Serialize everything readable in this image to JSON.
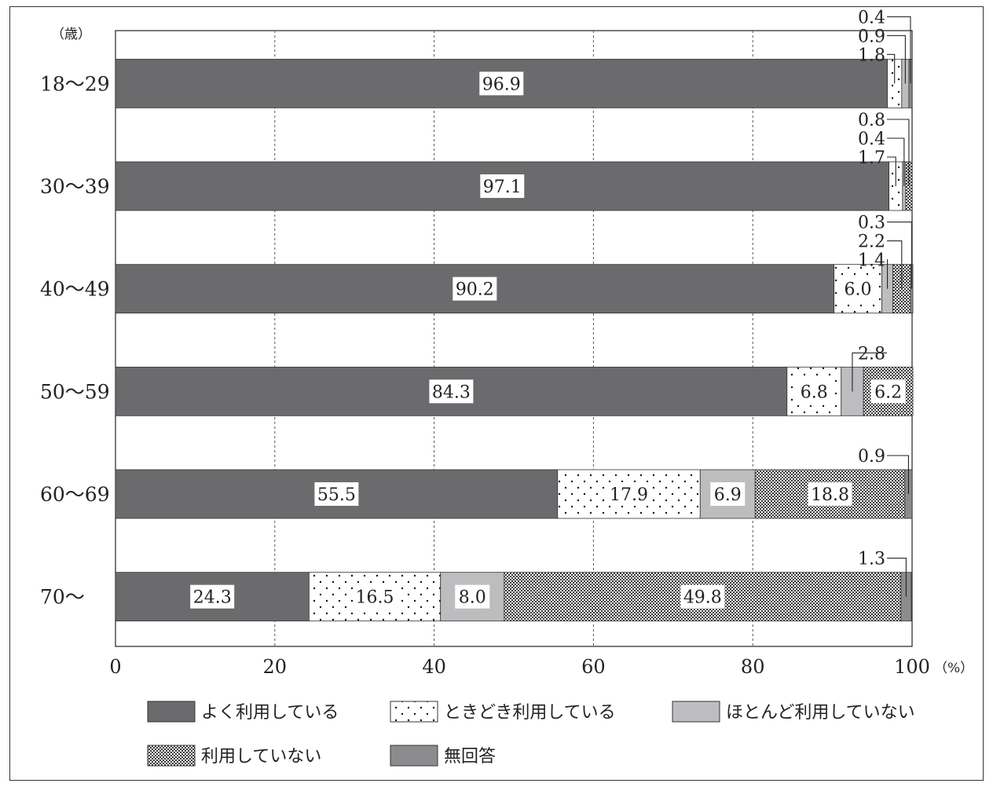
{
  "chart_data": {
    "type": "bar",
    "orientation": "horizontal",
    "stacked": true,
    "y_unit": "（歳）",
    "x_unit": "（%）",
    "xlim": [
      0,
      100
    ],
    "x_ticks": [
      0,
      20,
      40,
      60,
      80,
      100
    ],
    "grid": "vertical-dashed",
    "legend_position": "bottom",
    "categories": [
      "18～29",
      "30～39",
      "40～49",
      "50～59",
      "60～69",
      "70～"
    ],
    "series": [
      {
        "name": "よく利用している",
        "color": "#6b6b6e",
        "pattern": "solid-dark",
        "values": [
          96.9,
          97.1,
          90.2,
          84.3,
          55.5,
          24.3
        ],
        "labels": [
          "96.9",
          "97.1",
          "90.2",
          "84.3",
          "55.5",
          "24.3"
        ]
      },
      {
        "name": "ときどき利用している",
        "color": "#ffffff",
        "pattern": "dots",
        "values": [
          1.8,
          1.7,
          6.0,
          6.8,
          17.9,
          16.5
        ],
        "labels": [
          "1.8",
          "1.7",
          "6.0",
          "6.8",
          "17.9",
          "16.5"
        ]
      },
      {
        "name": "ほとんど利用していない",
        "color": "#bdbdc0",
        "pattern": "solid-light",
        "values": [
          0.9,
          0.4,
          1.4,
          2.8,
          6.9,
          8.0
        ],
        "labels": [
          "0.9",
          "0.4",
          "1.4",
          "2.8",
          "6.9",
          "8.0"
        ]
      },
      {
        "name": "利用していない",
        "color": "#9a9a9a",
        "pattern": "crosshatch",
        "values": [
          0.0,
          0.8,
          2.2,
          6.2,
          18.8,
          49.8
        ],
        "labels": [
          "",
          "0.8",
          "2.2",
          "6.2",
          "18.8",
          "49.8"
        ]
      },
      {
        "name": "無回答",
        "color": "#8c8c8e",
        "pattern": "solid-mid",
        "values": [
          0.4,
          0.0,
          0.3,
          0.0,
          0.9,
          1.3
        ],
        "labels": [
          "0.4",
          "",
          "0.3",
          "",
          "0.9",
          "1.3"
        ]
      }
    ]
  }
}
